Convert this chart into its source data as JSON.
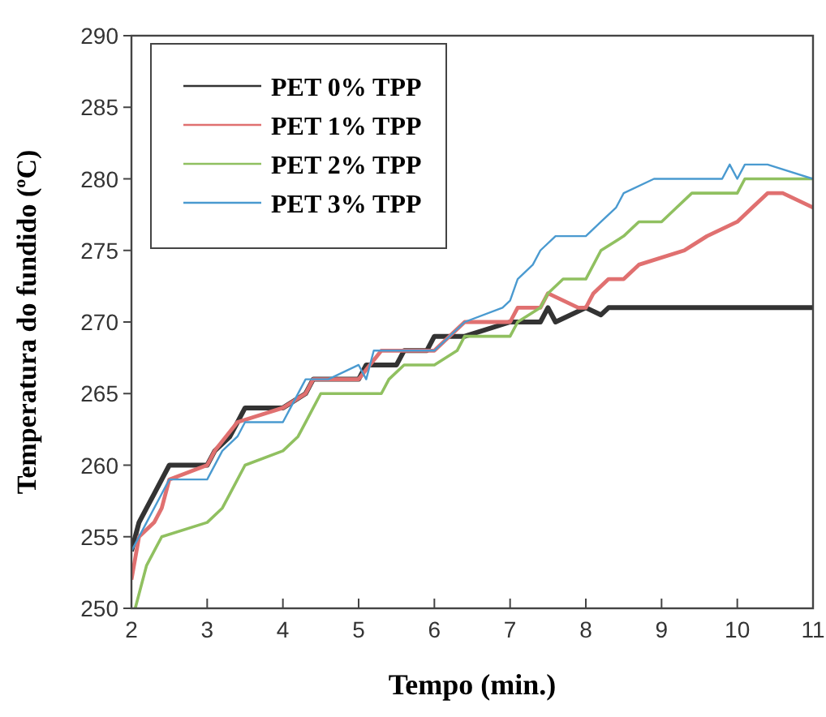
{
  "chart_data": {
    "type": "line",
    "xlabel": "Tempo (min.)",
    "ylabel": "Temperatura do fundido (ºC)",
    "xlim": [
      2,
      11
    ],
    "xticks": [
      2,
      3,
      4,
      5,
      6,
      7,
      8,
      9,
      10,
      11
    ],
    "ylim": [
      250,
      290
    ],
    "yticks": [
      250,
      255,
      260,
      265,
      270,
      275,
      280,
      285,
      290
    ],
    "grid": false,
    "legend": "top left",
    "marker": "none",
    "line_style": "solid",
    "series": [
      {
        "name": "PET 0% TPP",
        "color": "#333333",
        "x": [
          2,
          2.1,
          2.2,
          2.3,
          2.4,
          2.5,
          3,
          3.1,
          3.3,
          3.4,
          3.5,
          4,
          4.3,
          4.4,
          5,
          5.1,
          5.5,
          5.6,
          5.9,
          6,
          6.4,
          7,
          7.4,
          7.5,
          7.6,
          8,
          8.2,
          8.3,
          11
        ],
        "values": [
          254,
          256,
          257,
          258,
          259,
          260,
          260,
          261,
          262,
          263,
          264,
          264,
          265,
          266,
          266,
          267,
          267,
          268,
          268,
          269,
          269,
          270,
          270,
          271,
          270,
          271,
          270.5,
          271,
          271
        ]
      },
      {
        "name": "PET 1% TPP",
        "color": "#e07070",
        "x": [
          2,
          2.1,
          2.3,
          2.4,
          2.5,
          3,
          3.1,
          3.4,
          4,
          4.3,
          4.4,
          5,
          5.3,
          6,
          6.4,
          7,
          7.1,
          7.4,
          7.5,
          7.9,
          8,
          8.1,
          8.3,
          8.5,
          8.7,
          9.3,
          9.6,
          10,
          10.2,
          10.4,
          10.6,
          11
        ],
        "values": [
          252,
          255,
          256,
          257,
          259,
          260,
          261,
          263,
          264,
          265,
          266,
          266,
          268,
          268,
          270,
          270,
          271,
          271,
          272,
          271,
          271,
          272,
          273,
          273,
          274,
          275,
          276,
          277,
          278,
          279,
          279,
          278
        ]
      },
      {
        "name": "PET 2% TPP",
        "color": "#90c060",
        "x": [
          2.05,
          2.2,
          2.3,
          2.4,
          3,
          3.2,
          3.3,
          3.5,
          4,
          4.2,
          4.3,
          4.5,
          5,
          5.3,
          5.4,
          5.6,
          6,
          6.3,
          6.4,
          7,
          7.1,
          7.4,
          7.5,
          7.7,
          8,
          8.2,
          8.5,
          8.7,
          9,
          9.2,
          9.4,
          10,
          10.1,
          11
        ],
        "values": [
          250,
          253,
          254,
          255,
          256,
          257,
          258,
          260,
          261,
          262,
          263,
          265,
          265,
          265,
          266,
          267,
          267,
          268,
          269,
          269,
          270,
          271,
          272,
          273,
          273,
          275,
          276,
          277,
          277,
          278,
          279,
          279,
          280,
          280
        ]
      },
      {
        "name": "PET 3% TPP",
        "color": "#4a9ad0",
        "x": [
          2,
          2.2,
          2.4,
          2.5,
          3,
          3.2,
          3.4,
          3.5,
          4,
          4.1,
          4.3,
          4.6,
          5,
          5.1,
          5.2,
          6,
          6.4,
          6.9,
          7,
          7.1,
          7.3,
          7.4,
          7.6,
          8,
          8.2,
          8.4,
          8.5,
          8.9,
          9.8,
          9.9,
          10,
          10.1,
          10.4,
          11
        ],
        "values": [
          254,
          256,
          258,
          259,
          259,
          261,
          262,
          263,
          263,
          264,
          266,
          266,
          267,
          266,
          268,
          268,
          270,
          271,
          271.5,
          273,
          274,
          275,
          276,
          276,
          277,
          278,
          279,
          280,
          280,
          281,
          280,
          281,
          281,
          280
        ]
      }
    ]
  }
}
